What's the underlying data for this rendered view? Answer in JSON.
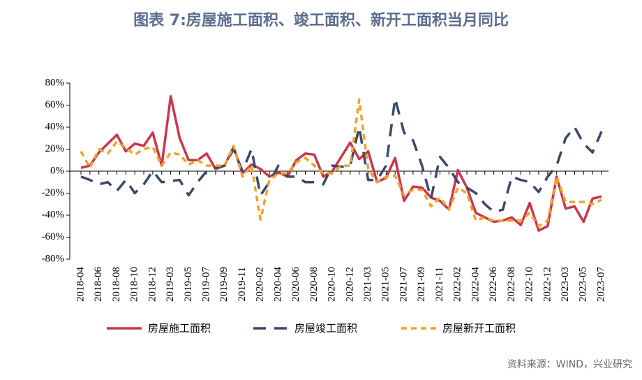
{
  "chart_data": {
    "type": "line",
    "title": "图表 7:房屋施工面积、竣工面积、新开工面积当月同比",
    "source": "资料来源：WIND，兴业研究",
    "categories": [
      "2018-04",
      null,
      "2018-06",
      null,
      "2018-08",
      null,
      "2018-10",
      null,
      "2018-12",
      null,
      "2019-03",
      null,
      "2019-05",
      null,
      "2019-07",
      null,
      "2019-09",
      null,
      "2019-11",
      null,
      "2020-02",
      null,
      "2020-04",
      null,
      "2020-06",
      null,
      "2020-08",
      null,
      "2020-10",
      null,
      "2020-12",
      null,
      "2021-03",
      null,
      "2021-05",
      null,
      "2021-07",
      null,
      "2021-09",
      null,
      "2021-11",
      null,
      "2022-02",
      null,
      "2022-04",
      null,
      "2022-06",
      null,
      "2022-08",
      null,
      "2022-10",
      null,
      "2022-12",
      null,
      "2023-03",
      null,
      "2023-05",
      null,
      "2023-07"
    ],
    "series": [
      {
        "name": "房屋施工面积",
        "color": "#c8374a",
        "values": [
          3,
          5,
          17,
          25,
          33,
          18,
          25,
          23,
          35,
          5,
          68,
          30,
          10,
          10,
          16,
          2,
          5,
          22,
          -2,
          6,
          2,
          -5,
          -1,
          -5,
          10,
          16,
          15,
          -5,
          0,
          13,
          26,
          11,
          18,
          -10,
          -6,
          12,
          -27,
          -14,
          -15,
          -24,
          -27,
          -35,
          1,
          -15,
          -38,
          -42,
          -46,
          -45,
          -42,
          -49,
          -29,
          -54,
          -50,
          -5,
          -34,
          -32,
          -46,
          -25,
          -23
        ]
      },
      {
        "name": "房屋竣工面积",
        "color": "#3b4a66",
        "values": [
          -5,
          -8,
          -12,
          -10,
          -18,
          -8,
          -20,
          -12,
          0,
          -10,
          -9,
          -8,
          -22,
          -10,
          0,
          3,
          5,
          20,
          0,
          20,
          -22,
          -10,
          5,
          -5,
          -5,
          -10,
          -10,
          -12,
          5,
          4,
          5,
          40,
          -8,
          -8,
          5,
          66,
          35,
          28,
          5,
          -25,
          13,
          3,
          -10,
          -15,
          -20,
          -30,
          -37,
          -35,
          -5,
          -8,
          -10,
          -19,
          -5,
          5,
          30,
          40,
          25,
          17,
          36
        ]
      },
      {
        "name": "房屋新开工面积",
        "color": "#f0a22e",
        "values": [
          18,
          3,
          20,
          16,
          27,
          21,
          15,
          20,
          22,
          5,
          17,
          15,
          6,
          10,
          5,
          5,
          5,
          23,
          -5,
          5,
          -44,
          -8,
          -2,
          -2,
          8,
          12,
          5,
          -2,
          -2,
          5,
          5,
          65,
          2,
          -10,
          -5,
          -4,
          -22,
          -17,
          -17,
          -32,
          -24,
          -35,
          -15,
          -20,
          -45,
          -42,
          -45,
          -45,
          -45,
          -45,
          -38,
          -50,
          -45,
          -5,
          -28,
          -28,
          -28,
          -30,
          -26
        ]
      }
    ],
    "ylim": [
      -80,
      80
    ],
    "yticks": [
      {
        "value": -80,
        "label": "-80%"
      },
      {
        "value": -60,
        "label": "-60%"
      },
      {
        "value": -40,
        "label": "-40%"
      },
      {
        "value": -20,
        "label": "-20%"
      },
      {
        "value": 0,
        "label": "0%"
      },
      {
        "value": 20,
        "label": "20%"
      },
      {
        "value": 40,
        "label": "40%"
      },
      {
        "value": 60,
        "label": "60%"
      },
      {
        "value": 80,
        "label": "80%"
      }
    ],
    "legend": "bottom"
  }
}
